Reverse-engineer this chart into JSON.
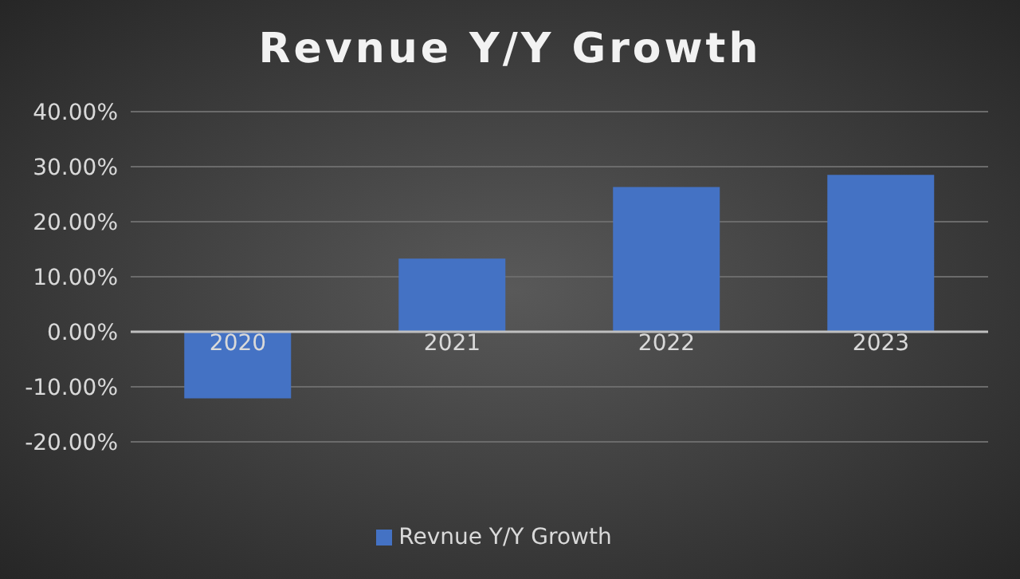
{
  "chart_data": {
    "type": "bar",
    "title": "Revnue Y/Y Growth",
    "categories": [
      "2020",
      "2021",
      "2022",
      "2023"
    ],
    "series": [
      {
        "name": "Revnue Y/Y Growth",
        "color": "#4472c4",
        "values": [
          -12.1,
          13.3,
          26.3,
          28.5
        ]
      }
    ],
    "ylim": [
      -20,
      40
    ],
    "yticks": [
      {
        "value": -20,
        "label": "-20.00%"
      },
      {
        "value": -10,
        "label": "-10.00%"
      },
      {
        "value": 0,
        "label": "0.00%"
      },
      {
        "value": 10,
        "label": "10.00%"
      },
      {
        "value": 20,
        "label": "20.00%"
      },
      {
        "value": 30,
        "label": "30.00%"
      },
      {
        "value": 40,
        "label": "40.00%"
      }
    ],
    "grid": "y",
    "legend": "bottom"
  }
}
